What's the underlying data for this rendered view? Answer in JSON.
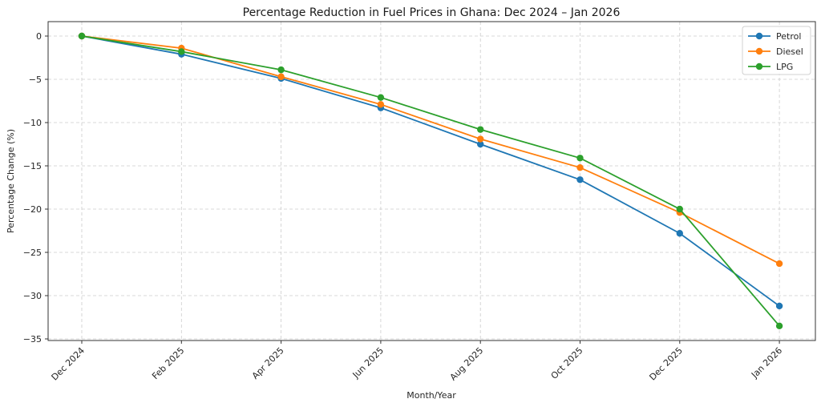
{
  "chart_data": {
    "type": "line",
    "title": "Percentage Reduction in Fuel Prices in Ghana: Dec 2024 – Jan 2026",
    "xlabel": "Month/Year",
    "ylabel": "Percentage Change (%)",
    "categories": [
      "Dec 2024",
      "Feb 2025",
      "Apr 2025",
      "Jun 2025",
      "Aug 2025",
      "Oct 2025",
      "Dec 2025",
      "Jan 2026"
    ],
    "ylim": [
      -35,
      0
    ],
    "yticks": [
      0,
      -5,
      -10,
      -15,
      -20,
      -25,
      -30,
      -35
    ],
    "ytick_labels": [
      "0",
      "−5",
      "−10",
      "−15",
      "−20",
      "−25",
      "−30",
      "−35"
    ],
    "grid": true,
    "legend_position": "top-right",
    "series": [
      {
        "name": "Petrol",
        "color": "#1f77b4",
        "values": [
          0,
          -2.1,
          -4.9,
          -8.3,
          -12.5,
          -16.6,
          -22.8,
          -31.2
        ]
      },
      {
        "name": "Diesel",
        "color": "#ff7f0e",
        "values": [
          0,
          -1.4,
          -4.7,
          -7.9,
          -11.9,
          -15.2,
          -20.4,
          -26.3
        ]
      },
      {
        "name": "LPG",
        "color": "#2ca02c",
        "values": [
          0,
          -1.8,
          -3.9,
          -7.1,
          -10.8,
          -14.1,
          -20.0,
          -33.5
        ]
      }
    ]
  }
}
